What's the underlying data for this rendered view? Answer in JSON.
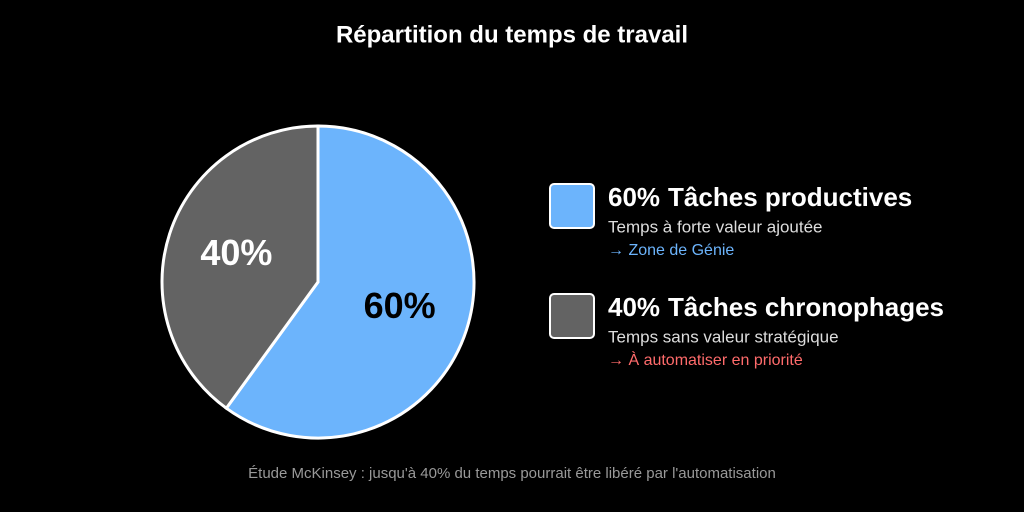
{
  "chart_data": {
    "type": "pie",
    "title": "Répartition du temps de travail",
    "categories": [
      "Tâches productives",
      "Tâches chronophages"
    ],
    "values": [
      60,
      40
    ],
    "value_labels": [
      "60%",
      "40%"
    ],
    "colors": [
      "#6cb4fc",
      "#636363"
    ],
    "descriptions": [
      "Temps à forte valeur ajoutée",
      "Temps sans valeur stratégique"
    ],
    "notes": [
      "→ Zone de Génie",
      "→ À automatiser en priorité"
    ],
    "note_colors": [
      "#6cb4fc",
      "#ff6b6b"
    ],
    "source": "Étude McKinsey : jusqu'à 40% du temps pourrait être libéré par l'automatisation"
  }
}
